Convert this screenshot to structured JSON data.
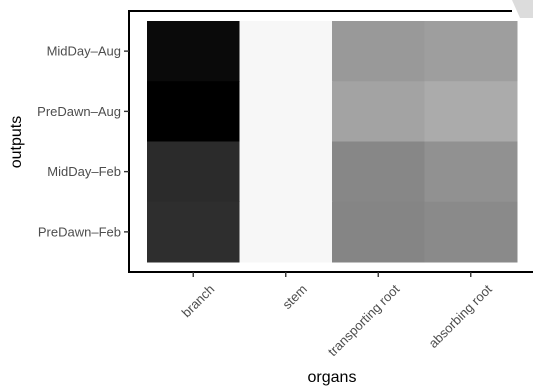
{
  "chart_data": {
    "type": "heatmap",
    "title": "",
    "xlabel": "organs",
    "ylabel": "outputs",
    "x_categories": [
      "branch",
      "stem",
      "transporting root",
      "absorbing root"
    ],
    "y_categories": [
      "MidDay–Aug",
      "PreDawn–Aug",
      "MidDay–Feb",
      "PreDawn–Feb"
    ],
    "values": [
      [
        0.04,
        0.97,
        0.6,
        0.62
      ],
      [
        0.0,
        0.97,
        0.64,
        0.67
      ],
      [
        0.17,
        0.97,
        0.53,
        0.57
      ],
      [
        0.18,
        0.97,
        0.52,
        0.54
      ]
    ],
    "color_scale": {
      "low": "#000000",
      "high": "#ffffff"
    },
    "grid": false,
    "legend": "none"
  }
}
